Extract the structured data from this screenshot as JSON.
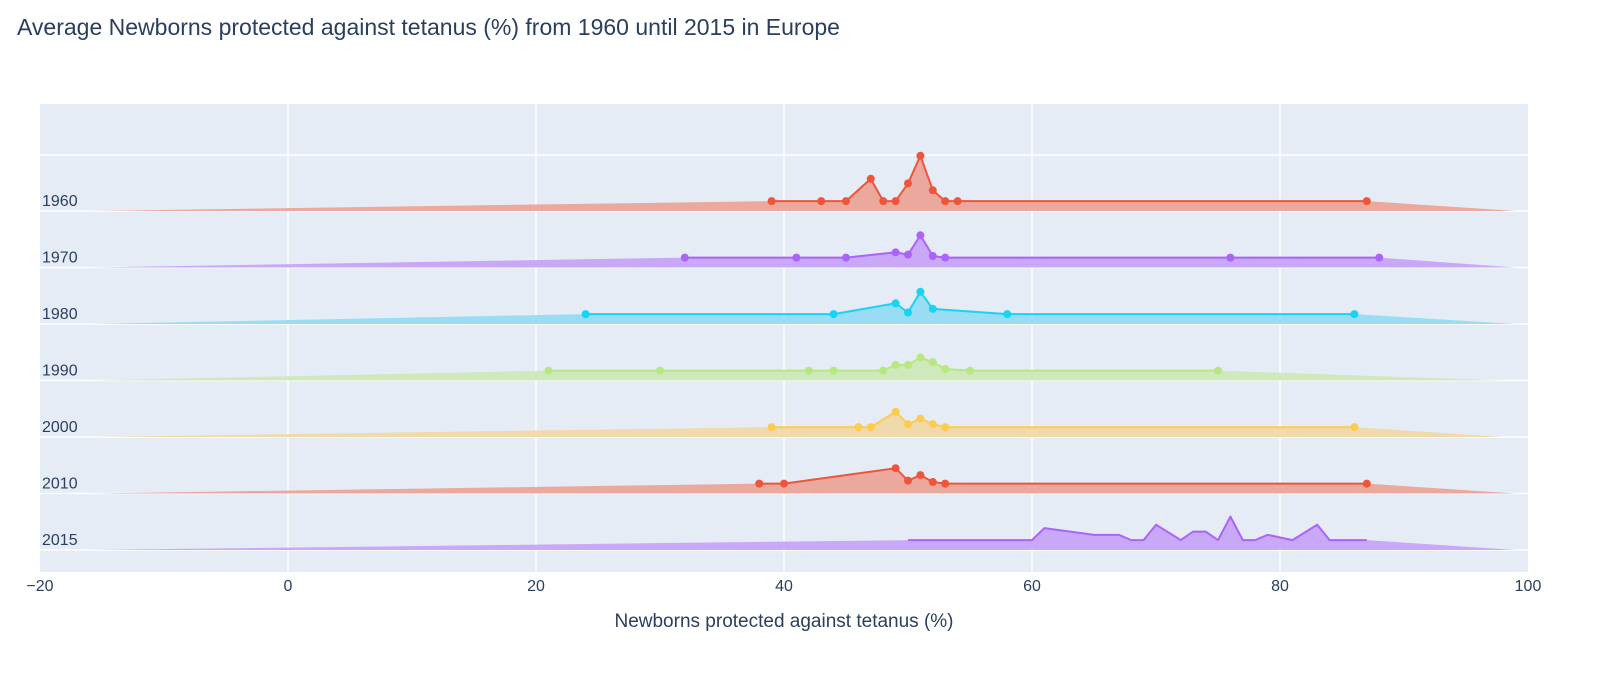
{
  "chart_title": "Average Newborns protected against tetanus (%) from 1960 until 2015 in Europe",
  "chart_data": {
    "type": "area",
    "title": "Average Newborns protected against tetanus (%) from 1960 until 2015 in Europe",
    "xlabel": "Newborns protected against tetanus (%)",
    "ylabel": "",
    "xlim": [
      -20,
      100
    ],
    "x_ticks": [
      -20,
      0,
      20,
      40,
      60,
      80,
      100
    ],
    "x_tick_labels": [
      "−20",
      "0",
      "20",
      "40",
      "60",
      "80",
      "100"
    ],
    "grid": true,
    "legend": "none",
    "plot_background": "#e5ecf6",
    "series": [
      {
        "name": "1960",
        "color": "#ef553b",
        "fill": "#eba497",
        "density": [
          [
            -16,
            0
          ],
          [
            39,
            0.43
          ],
          [
            43,
            0.43
          ],
          [
            45,
            0.43
          ],
          [
            47,
            1.4
          ],
          [
            48,
            0.43
          ],
          [
            49,
            0.43
          ],
          [
            50,
            1.2
          ],
          [
            51,
            2.4
          ],
          [
            52,
            0.9
          ],
          [
            53,
            0.43
          ],
          [
            54,
            0.43
          ],
          [
            87,
            0.43
          ],
          [
            99,
            0
          ]
        ],
        "markers": [
          [
            39,
            0.43
          ],
          [
            43,
            0.43
          ],
          [
            45,
            0.43
          ],
          [
            47,
            1.4
          ],
          [
            48,
            0.43
          ],
          [
            49,
            0.43
          ],
          [
            50,
            1.2
          ],
          [
            51,
            2.4
          ],
          [
            52,
            0.9
          ],
          [
            53,
            0.43
          ],
          [
            54,
            0.43
          ],
          [
            87,
            0.43
          ]
        ]
      },
      {
        "name": "1970",
        "color": "#ab63fa",
        "fill": "#c7a5f7",
        "density": [
          [
            -16,
            0
          ],
          [
            32,
            0.43
          ],
          [
            41,
            0.43
          ],
          [
            45,
            0.43
          ],
          [
            49,
            0.66
          ],
          [
            50,
            0.56
          ],
          [
            51,
            1.4
          ],
          [
            52,
            0.5
          ],
          [
            53,
            0.43
          ],
          [
            76,
            0.43
          ],
          [
            88,
            0.43
          ],
          [
            99,
            0
          ]
        ],
        "markers": [
          [
            32,
            0.43
          ],
          [
            41,
            0.43
          ],
          [
            45,
            0.43
          ],
          [
            49,
            0.66
          ],
          [
            50,
            0.56
          ],
          [
            51,
            1.4
          ],
          [
            52,
            0.5
          ],
          [
            53,
            0.43
          ],
          [
            76,
            0.43
          ],
          [
            88,
            0.43
          ]
        ]
      },
      {
        "name": "1980",
        "color": "#19d3f3",
        "fill": "#93dcf2",
        "density": [
          [
            -16,
            0
          ],
          [
            24,
            0.43
          ],
          [
            44,
            0.43
          ],
          [
            49,
            0.9
          ],
          [
            50,
            0.5
          ],
          [
            51,
            1.4
          ],
          [
            52,
            0.66
          ],
          [
            58,
            0.43
          ],
          [
            86,
            0.43
          ],
          [
            99,
            0
          ]
        ],
        "markers": [
          [
            24,
            0.43
          ],
          [
            44,
            0.43
          ],
          [
            49,
            0.9
          ],
          [
            50,
            0.5
          ],
          [
            51,
            1.4
          ],
          [
            52,
            0.66
          ],
          [
            58,
            0.43
          ],
          [
            86,
            0.43
          ]
        ]
      },
      {
        "name": "1990",
        "color": "#b6e880",
        "fill": "#cde8b8",
        "density": [
          [
            -16,
            0
          ],
          [
            21,
            0.43
          ],
          [
            30,
            0.43
          ],
          [
            42,
            0.43
          ],
          [
            44,
            0.43
          ],
          [
            48,
            0.43
          ],
          [
            49,
            0.68
          ],
          [
            50,
            0.68
          ],
          [
            51,
            1.0
          ],
          [
            52,
            0.8
          ],
          [
            53,
            0.5
          ],
          [
            55,
            0.43
          ],
          [
            75,
            0.43
          ],
          [
            98,
            0
          ]
        ],
        "markers": [
          [
            21,
            0.43
          ],
          [
            30,
            0.43
          ],
          [
            42,
            0.43
          ],
          [
            44,
            0.43
          ],
          [
            48,
            0.43
          ],
          [
            49,
            0.68
          ],
          [
            50,
            0.68
          ],
          [
            51,
            1.0
          ],
          [
            52,
            0.8
          ],
          [
            53,
            0.5
          ],
          [
            55,
            0.43
          ],
          [
            75,
            0.43
          ]
        ]
      },
      {
        "name": "2000",
        "color": "#fecb52",
        "fill": "#f1d9a4",
        "density": [
          [
            -16,
            0
          ],
          [
            39,
            0.43
          ],
          [
            46,
            0.43
          ],
          [
            47,
            0.43
          ],
          [
            49,
            1.1
          ],
          [
            50,
            0.56
          ],
          [
            51,
            0.8
          ],
          [
            52,
            0.56
          ],
          [
            53,
            0.43
          ],
          [
            86,
            0.43
          ],
          [
            98,
            0
          ]
        ],
        "markers": [
          [
            39,
            0.43
          ],
          [
            46,
            0.43
          ],
          [
            47,
            0.43
          ],
          [
            49,
            1.1
          ],
          [
            50,
            0.56
          ],
          [
            51,
            0.8
          ],
          [
            52,
            0.56
          ],
          [
            53,
            0.43
          ],
          [
            86,
            0.43
          ]
        ]
      },
      {
        "name": "2010",
        "color": "#ef553b",
        "fill": "#eba497",
        "density": [
          [
            -16,
            0
          ],
          [
            38,
            0.43
          ],
          [
            40,
            0.43
          ],
          [
            49,
            1.1
          ],
          [
            50,
            0.56
          ],
          [
            51,
            0.8
          ],
          [
            52,
            0.5
          ],
          [
            53,
            0.43
          ],
          [
            87,
            0.43
          ],
          [
            99,
            0
          ]
        ],
        "markers": [
          [
            38,
            0.43
          ],
          [
            40,
            0.43
          ],
          [
            49,
            1.1
          ],
          [
            50,
            0.56
          ],
          [
            51,
            0.8
          ],
          [
            52,
            0.5
          ],
          [
            53,
            0.43
          ],
          [
            87,
            0.43
          ]
        ]
      },
      {
        "name": "2015",
        "color": "#ab63fa",
        "fill": "#c7a5f7",
        "density": [
          [
            -16,
            0
          ],
          [
            50,
            0.43
          ],
          [
            60,
            0.43
          ],
          [
            61,
            0.95
          ],
          [
            65,
            0.66
          ],
          [
            67,
            0.66
          ],
          [
            68,
            0.43
          ],
          [
            69,
            0.43
          ],
          [
            70,
            1.1
          ],
          [
            72,
            0.43
          ],
          [
            73,
            0.8
          ],
          [
            74,
            0.8
          ],
          [
            75,
            0.43
          ],
          [
            76,
            1.45
          ],
          [
            77,
            0.43
          ],
          [
            78,
            0.43
          ],
          [
            79,
            0.66
          ],
          [
            81,
            0.43
          ],
          [
            83,
            1.1
          ],
          [
            84,
            0.43
          ],
          [
            87,
            0.43
          ],
          [
            99,
            0
          ]
        ],
        "markers": []
      }
    ]
  }
}
